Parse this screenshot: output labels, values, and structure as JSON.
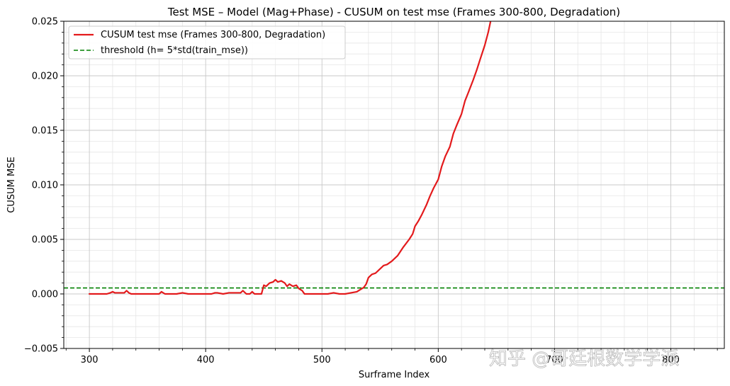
{
  "chart_data": {
    "type": "line",
    "title": "Test MSE – Model (Mag+Phase) - CUSUM on test mse (Frames 300-800, Degradation)",
    "xlabel": "Surframe Index",
    "ylabel": "CUSUM MSE",
    "xlim": [
      278,
      846
    ],
    "ylim": [
      -0.005,
      0.025
    ],
    "x_ticks": [
      300,
      400,
      500,
      600,
      700,
      800
    ],
    "x_tick_labels": [
      "300",
      "400",
      "500",
      "600",
      "700",
      "800"
    ],
    "y_ticks": [
      -0.005,
      0.0,
      0.005,
      0.01,
      0.015,
      0.02,
      0.025
    ],
    "y_tick_labels": [
      "−0.005",
      "0.000",
      "0.005",
      "0.010",
      "0.015",
      "0.020",
      "0.025"
    ],
    "grid": true,
    "minor_grid": true,
    "legend_position": "upper-left",
    "series": [
      {
        "name": "CUSUM test mse (Frames 300-800, Degradation)",
        "color": "#e31a1c",
        "style": "solid",
        "x": [
          300,
          305,
          310,
          315,
          318,
          320,
          322,
          325,
          330,
          332,
          334,
          336,
          340,
          345,
          350,
          355,
          360,
          362,
          365,
          370,
          375,
          380,
          385,
          390,
          395,
          400,
          405,
          408,
          410,
          415,
          420,
          425,
          430,
          432,
          435,
          438,
          440,
          442,
          445,
          448,
          450,
          452,
          455,
          458,
          460,
          462,
          465,
          468,
          470,
          472,
          475,
          478,
          480,
          483,
          485,
          488,
          490,
          495,
          500,
          505,
          510,
          515,
          520,
          525,
          530,
          533,
          536,
          538,
          540,
          543,
          546,
          550,
          553,
          556,
          560,
          565,
          570,
          575,
          578,
          580,
          583,
          586,
          590,
          593,
          596,
          600,
          603,
          606,
          610,
          613,
          616,
          620,
          623,
          626,
          630,
          633,
          636,
          640,
          643,
          646,
          650
        ],
        "y": [
          0.0,
          0.0,
          0.0,
          0.0,
          0.0001,
          0.0002,
          0.0001,
          0.0001,
          0.0001,
          0.0003,
          0.0001,
          0.0,
          0.0,
          0.0,
          0.0,
          0.0,
          0.0,
          0.0002,
          0.0,
          0.0,
          0.0,
          0.0001,
          0.0,
          0.0,
          0.0,
          0.0,
          0.0,
          0.0001,
          0.0001,
          0.0,
          0.0001,
          0.0001,
          0.0001,
          0.0003,
          0.0,
          0.0,
          0.0002,
          0.0,
          0.0,
          0.0,
          0.0008,
          0.0007,
          0.001,
          0.0011,
          0.0013,
          0.0011,
          0.0012,
          0.001,
          0.0007,
          0.0009,
          0.0007,
          0.0008,
          0.0005,
          0.0003,
          0.0,
          0.0,
          0.0,
          0.0,
          0.0,
          0.0,
          0.0001,
          0.0,
          0.0,
          0.0001,
          0.0002,
          0.0004,
          0.0006,
          0.0009,
          0.0015,
          0.0018,
          0.0019,
          0.0023,
          0.0026,
          0.0027,
          0.003,
          0.0035,
          0.0043,
          0.005,
          0.0055,
          0.0062,
          0.0067,
          0.0073,
          0.0082,
          0.009,
          0.0097,
          0.0105,
          0.0117,
          0.0126,
          0.0135,
          0.0147,
          0.0155,
          0.0165,
          0.0177,
          0.0185,
          0.0196,
          0.0205,
          0.0215,
          0.0228,
          0.024,
          0.0255,
          0.027
        ]
      },
      {
        "name": "threshold (h= 5*std(train_mse))",
        "color": "#008000",
        "style": "dashed",
        "constant_y": 0.00055
      }
    ]
  },
  "watermark": {
    "text": "知乎 @哥廷根数学学派"
  }
}
